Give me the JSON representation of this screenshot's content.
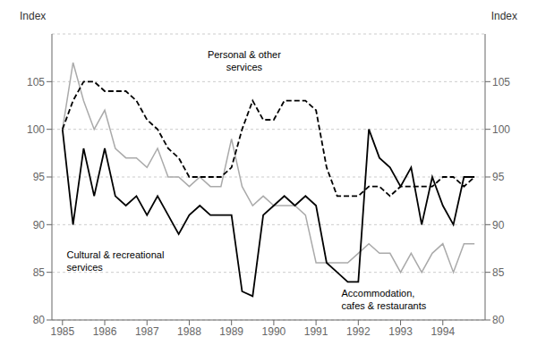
{
  "chart_data": {
    "type": "line",
    "ylabel": "Index",
    "y2label": "Index",
    "xlim": [
      1984.75,
      1995.0
    ],
    "xticks": [
      1985,
      1986,
      1987,
      1988,
      1989,
      1990,
      1991,
      1992,
      1993,
      1994
    ],
    "ylim": [
      80,
      110
    ],
    "yticks": [
      80,
      85,
      90,
      95,
      100,
      105
    ],
    "y2lim": [
      80,
      110
    ],
    "y2ticks": [
      80,
      85,
      90,
      95,
      100,
      105
    ],
    "grid": "y",
    "x": [
      1985.0,
      1985.25,
      1985.5,
      1985.75,
      1986.0,
      1986.25,
      1986.5,
      1986.75,
      1987.0,
      1987.25,
      1987.5,
      1987.75,
      1988.0,
      1988.25,
      1988.5,
      1988.75,
      1989.0,
      1989.25,
      1989.5,
      1989.75,
      1990.0,
      1990.25,
      1990.5,
      1990.75,
      1991.0,
      1991.25,
      1991.5,
      1991.75,
      1992.0,
      1992.25,
      1992.5,
      1992.75,
      1993.0,
      1993.25,
      1993.5,
      1993.75,
      1994.0,
      1994.25,
      1994.5,
      1994.75
    ],
    "series": [
      {
        "color": "#aaaaaa",
        "line_style": "solid",
        "values": [
          100,
          107,
          103,
          100,
          102,
          98,
          97,
          97,
          96,
          98,
          95,
          95,
          94,
          95,
          94,
          94,
          99,
          94,
          92,
          93,
          92,
          92,
          92,
          91,
          86,
          86,
          86,
          86,
          87,
          88,
          87,
          87,
          85,
          87,
          85,
          87,
          88,
          85,
          88,
          88
        ]
      },
      {
        "color": "#000000",
        "line_style": "solid",
        "values": [
          100,
          90,
          98,
          93,
          98,
          93,
          92,
          93,
          91,
          93,
          91,
          89,
          91,
          92,
          91,
          91,
          91,
          83,
          82.5,
          91,
          92,
          93,
          92,
          93,
          92,
          86,
          85,
          84,
          84,
          100,
          97,
          96,
          94,
          96,
          90,
          95,
          92,
          90,
          95,
          95
        ]
      },
      {
        "color": "#000000",
        "line_style": "dashed",
        "values": [
          100,
          103,
          105,
          105,
          104,
          104,
          104,
          103,
          101,
          100,
          98,
          97,
          95,
          95,
          95,
          95,
          96,
          100,
          103,
          101,
          101,
          103,
          103,
          103,
          102,
          96,
          93,
          93,
          93,
          94,
          94,
          93,
          94,
          94,
          94,
          94,
          95,
          95,
          94,
          95
        ]
      }
    ],
    "annotations": [
      {
        "text": "Cultural & recreational\nservices",
        "x": 1985.1,
        "y": 87.5
      },
      {
        "text": "Accommodation,\ncafes & restaurants",
        "x": 1991.6,
        "y": 83.5
      },
      {
        "text": "Personal & other\nservices",
        "x": 1989.3,
        "y": 108.5
      }
    ]
  }
}
